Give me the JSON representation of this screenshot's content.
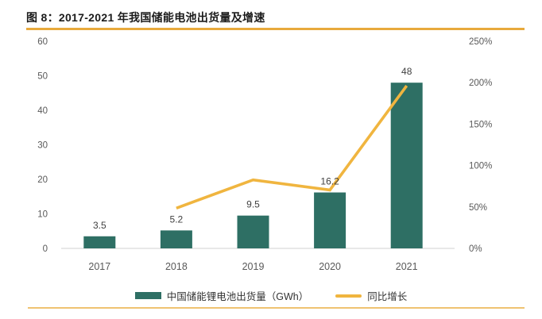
{
  "title": "图 8：2017-2021 年我国储能电池出货量及增速",
  "legend": {
    "bars": "中国储能锂电池出货量（GWh）",
    "line": "同比增长"
  },
  "colors": {
    "bar": "#2E6F64",
    "line": "#F0B53F",
    "accent_rule": "#E8A93C",
    "bottom_rule": "#ECB958",
    "axis_line": "#D9D9D9",
    "tick_text": "#595959",
    "data_label": "#404040"
  },
  "chart_data": {
    "type": "bar",
    "subtype": "combo-bar-line",
    "title": "2017-2021 年我国储能电池出货量及增速",
    "categories": [
      "2017",
      "2018",
      "2019",
      "2020",
      "2021"
    ],
    "series": [
      {
        "name": "中国储能锂电池出货量（GWh）",
        "type": "bar",
        "axis": "left",
        "values": [
          3.5,
          5.2,
          9.5,
          16.2,
          48
        ],
        "data_labels": [
          "3.5",
          "5.2",
          "9.5",
          "16.2",
          "48"
        ]
      },
      {
        "name": "同比增长",
        "type": "line",
        "axis": "right",
        "values_pct": [
          null,
          48.6,
          82.7,
          70.5,
          196.3
        ]
      }
    ],
    "left_axis": {
      "ticks": [
        "0",
        "10",
        "20",
        "30",
        "40",
        "50",
        "60"
      ],
      "range": [
        0,
        60
      ]
    },
    "right_axis": {
      "ticks": [
        "0%",
        "50%",
        "100%",
        "150%",
        "200%",
        "250%"
      ],
      "range_pct": [
        0,
        250
      ]
    },
    "grid": false,
    "legend_position": "bottom"
  }
}
